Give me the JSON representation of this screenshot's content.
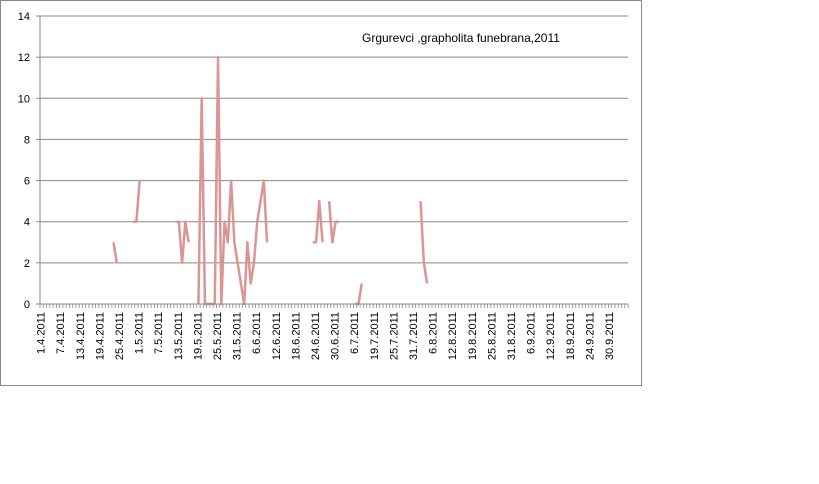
{
  "chart_data": {
    "type": "line",
    "title": "Grgurevci ,grapholita funebrana,2011",
    "categories": [
      "1.4.2011",
      null,
      null,
      null,
      null,
      null,
      "7.4.2011",
      null,
      null,
      null,
      null,
      null,
      "13.4.2011",
      null,
      null,
      null,
      null,
      null,
      "19.4.2011",
      null,
      null,
      null,
      null,
      null,
      "25.4.2011",
      null,
      null,
      null,
      null,
      null,
      "1.5.2011",
      null,
      null,
      null,
      null,
      null,
      "7.5.2011",
      null,
      null,
      null,
      null,
      null,
      "13.5.2011",
      null,
      null,
      null,
      null,
      null,
      "19.5.2011",
      null,
      null,
      null,
      null,
      null,
      "25.5.2011",
      null,
      null,
      null,
      null,
      null,
      "31.5.2011",
      null,
      null,
      null,
      null,
      null,
      "6.6.2011",
      null,
      null,
      null,
      null,
      null,
      "12.6.2011",
      null,
      null,
      null,
      null,
      null,
      "18.6.2011",
      null,
      null,
      null,
      null,
      null,
      "24.6.2011",
      null,
      null,
      null,
      null,
      null,
      "30.6.2011",
      null,
      null,
      null,
      null,
      null,
      "6.7.2011",
      null,
      null,
      null,
      null,
      null,
      "19.7.2011",
      null,
      null,
      null,
      null,
      null,
      "25.7.2011",
      null,
      null,
      null,
      null,
      null,
      "31.7.2011",
      null,
      null,
      null,
      null,
      null,
      "6.8.2011",
      null,
      null,
      null,
      null,
      null,
      "12.8.2011",
      null,
      null,
      null,
      null,
      null,
      "19.8.2011",
      null,
      null,
      null,
      null,
      null,
      "25.8.2011",
      null,
      null,
      null,
      null,
      null,
      "31.8.2011",
      null,
      null,
      null,
      null,
      null,
      "6.9.2011",
      null,
      null,
      null,
      null,
      null,
      "12.9.2011",
      null,
      null,
      null,
      null,
      null,
      "18.9.2011",
      null,
      null,
      null,
      null,
      null,
      "24.9.2011",
      null,
      null,
      null,
      null,
      null,
      "30.9.2011",
      null,
      null,
      null,
      null,
      null
    ],
    "values": [
      null,
      null,
      null,
      null,
      null,
      null,
      null,
      null,
      null,
      null,
      null,
      null,
      null,
      null,
      null,
      null,
      null,
      null,
      null,
      null,
      null,
      null,
      3,
      2,
      null,
      null,
      null,
      null,
      4,
      4,
      6,
      null,
      null,
      null,
      null,
      null,
      null,
      null,
      null,
      null,
      null,
      4,
      4,
      2,
      4,
      3,
      null,
      null,
      0,
      10,
      0,
      0,
      0,
      0,
      12,
      0,
      4,
      3,
      6,
      3,
      2,
      1,
      0,
      3,
      1,
      2,
      4,
      5,
      6,
      3,
      null,
      null,
      null,
      null,
      null,
      null,
      null,
      null,
      null,
      null,
      null,
      null,
      null,
      3,
      3,
      5,
      3,
      null,
      5,
      3,
      4,
      4,
      null,
      null,
      null,
      null,
      0,
      0,
      1,
      null,
      null,
      null,
      null,
      null,
      null,
      null,
      null,
      null,
      null,
      null,
      null,
      null,
      null,
      null,
      null,
      null,
      5,
      2,
      1,
      null,
      null,
      null,
      null,
      null,
      null,
      null,
      null,
      null,
      null,
      null,
      null,
      null,
      null,
      null,
      null,
      null,
      null,
      null,
      null,
      null,
      null,
      null,
      null,
      null,
      null,
      null,
      null,
      null,
      null,
      null,
      null,
      null,
      null,
      null,
      null,
      null,
      null,
      null,
      null,
      null,
      null,
      null,
      null,
      null,
      null,
      null,
      null,
      null,
      null,
      null,
      null,
      null,
      null,
      null,
      null,
      null,
      null,
      null,
      null,
      null
    ],
    "color": "#d99694",
    "ylim": [
      0,
      14
    ],
    "yticks": [
      0,
      2,
      4,
      6,
      8,
      10,
      12,
      14
    ],
    "grid": true
  }
}
